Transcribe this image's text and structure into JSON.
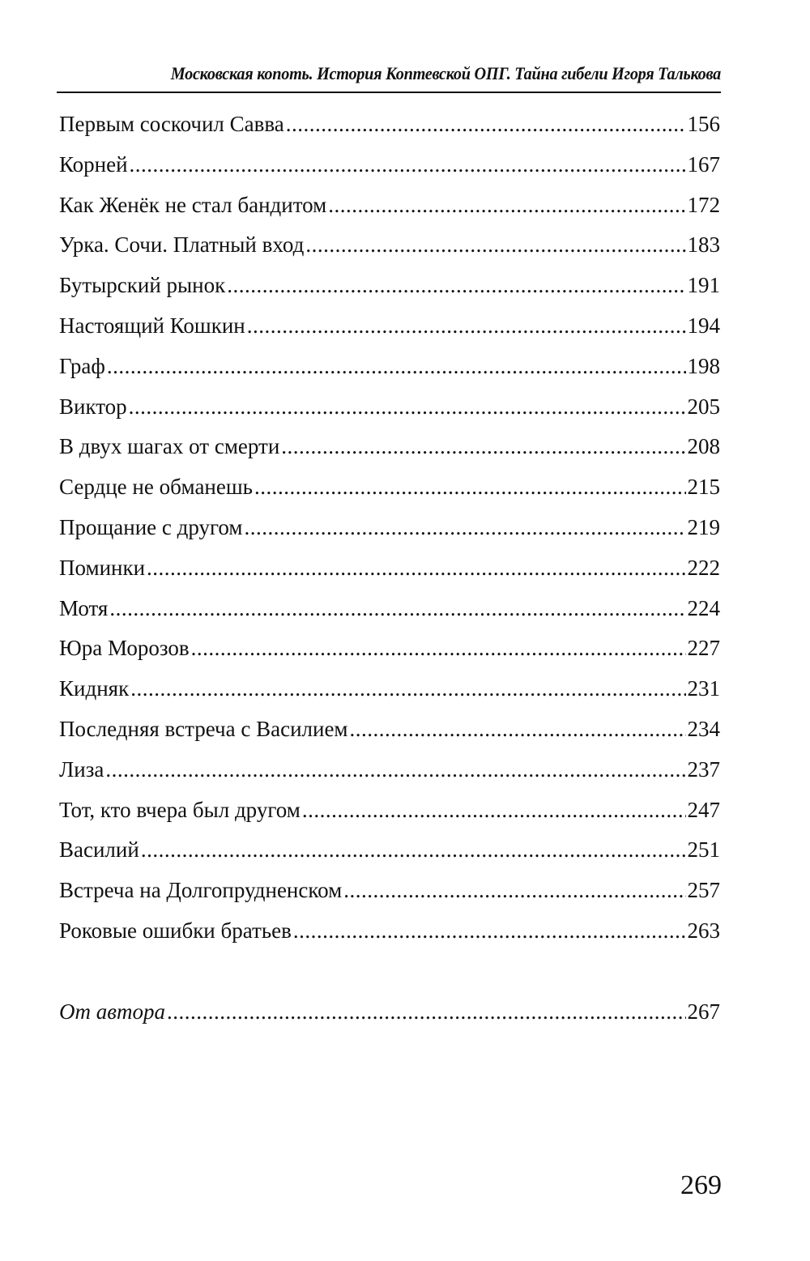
{
  "header": {
    "running_title": "Московская копоть. История Коптевской ОПГ. Тайна гибели Игоря Талькова"
  },
  "toc": [
    {
      "title": "Первым соскочил Савва",
      "page": "156"
    },
    {
      "title": "Корней",
      "page": "167"
    },
    {
      "title": "Как Женёк не стал бандитом",
      "page": "172"
    },
    {
      "title": "Урка. Сочи. Платный вход",
      "page": "183"
    },
    {
      "title": "Бутырский рынок",
      "page": "191"
    },
    {
      "title": "Настоящий Кошкин",
      "page": "194"
    },
    {
      "title": "Граф",
      "page": "198"
    },
    {
      "title": "Виктор",
      "page": "205"
    },
    {
      "title": "В двух шагах от смерти",
      "page": "208"
    },
    {
      "title": "Сердце не обманешь",
      "page": "215"
    },
    {
      "title": "Прощание с другом",
      "page": "219"
    },
    {
      "title": "Поминки",
      "page": "222"
    },
    {
      "title": "Мотя",
      "page": "224"
    },
    {
      "title": "Юра Морозов",
      "page": "227"
    },
    {
      "title": "Кидняк",
      "page": "231"
    },
    {
      "title": "Последняя встреча с Василием",
      "page": "234"
    },
    {
      "title": "Лиза",
      "page": "237"
    },
    {
      "title": "Тот, кто вчера был другом",
      "page": "247"
    },
    {
      "title": "Василий",
      "page": "251"
    },
    {
      "title": "Встреча на Долгопрудненском",
      "page": "257"
    },
    {
      "title": "Роковые ошибки братьев",
      "page": "263"
    }
  ],
  "afterword": {
    "title": "От автора",
    "page": "267"
  },
  "page_number": "269"
}
